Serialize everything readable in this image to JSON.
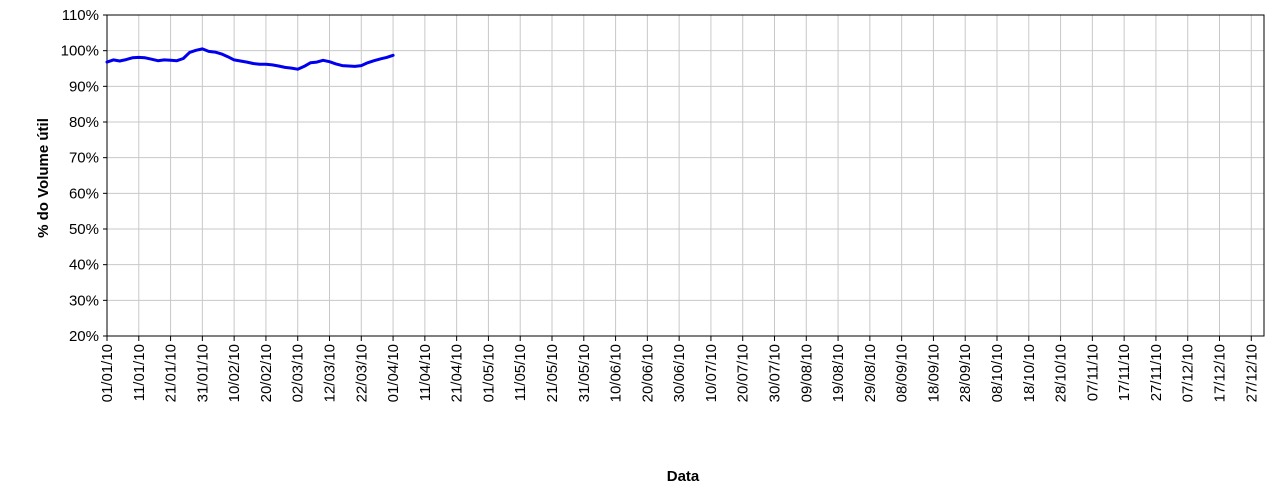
{
  "chart_data": {
    "type": "line",
    "title": "",
    "xlabel": "Data",
    "ylabel": "% do Volume útil",
    "ylim": [
      20,
      110
    ],
    "y_ticks": [
      "20%",
      "30%",
      "40%",
      "50%",
      "60%",
      "70%",
      "80%",
      "90%",
      "100%",
      "110%"
    ],
    "y_tick_values": [
      20,
      30,
      40,
      50,
      60,
      70,
      80,
      90,
      100,
      110
    ],
    "x_range": [
      "01/01/10",
      "31/12/10"
    ],
    "x_ticks": [
      "01/01/10",
      "11/01/10",
      "21/01/10",
      "31/01/10",
      "10/02/10",
      "20/02/10",
      "02/03/10",
      "12/03/10",
      "22/03/10",
      "01/04/10",
      "11/04/10",
      "21/04/10",
      "01/05/10",
      "11/05/10",
      "21/05/10",
      "31/05/10",
      "10/06/10",
      "20/06/10",
      "30/06/10",
      "10/07/10",
      "20/07/10",
      "30/07/10",
      "09/08/10",
      "19/08/10",
      "29/08/10",
      "08/09/10",
      "18/09/10",
      "28/09/10",
      "08/10/10",
      "18/10/10",
      "28/10/10",
      "07/11/10",
      "17/11/10",
      "27/11/10",
      "07/12/10",
      "17/12/10",
      "27/12/10"
    ],
    "grid": true,
    "series": [
      {
        "color": "#0000ee",
        "x": [
          "01/01/10",
          "03/01/10",
          "05/01/10",
          "07/01/10",
          "09/01/10",
          "11/01/10",
          "13/01/10",
          "15/01/10",
          "17/01/10",
          "19/01/10",
          "21/01/10",
          "23/01/10",
          "25/01/10",
          "27/01/10",
          "29/01/10",
          "31/01/10",
          "02/02/10",
          "04/02/10",
          "06/02/10",
          "08/02/10",
          "10/02/10",
          "12/02/10",
          "14/02/10",
          "16/02/10",
          "18/02/10",
          "20/02/10",
          "22/02/10",
          "24/02/10",
          "26/02/10",
          "28/02/10",
          "02/03/10",
          "04/03/10",
          "06/03/10",
          "08/03/10",
          "10/03/10",
          "12/03/10",
          "14/03/10",
          "16/03/10",
          "18/03/10",
          "20/03/10",
          "22/03/10",
          "24/03/10",
          "26/03/10",
          "28/03/10",
          "30/03/10",
          "01/04/10"
        ],
        "y": [
          96.8,
          97.4,
          97.1,
          97.5,
          98.0,
          98.1,
          98.0,
          97.6,
          97.2,
          97.4,
          97.3,
          97.2,
          97.8,
          99.5,
          100.1,
          100.5,
          99.8,
          99.6,
          99.1,
          98.3,
          97.4,
          97.1,
          96.8,
          96.4,
          96.2,
          96.2,
          96.0,
          95.7,
          95.3,
          95.1,
          94.8,
          95.6,
          96.6,
          96.8,
          97.3,
          96.9,
          96.3,
          95.8,
          95.7,
          95.6,
          95.8,
          96.6,
          97.2,
          97.7,
          98.1,
          98.7
        ]
      }
    ]
  }
}
